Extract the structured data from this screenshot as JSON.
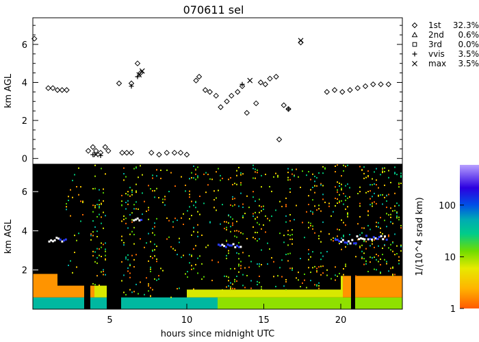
{
  "chart_data": [
    {
      "type": "scatter",
      "panel": "cloud-base-heights",
      "title": "070611 sel",
      "ylabel": "km AGL",
      "xlim": [
        0,
        24
      ],
      "ylim": [
        -0.3,
        7.4
      ],
      "yticks": [
        0,
        2,
        4,
        6
      ],
      "legend_position": "right",
      "legend": [
        {
          "marker": "diamond",
          "label": "1st",
          "value": "32.3%"
        },
        {
          "marker": "triangle",
          "label": "2nd",
          "value": "0.6%"
        },
        {
          "marker": "square",
          "label": "3rd",
          "value": "0.0%"
        },
        {
          "marker": "plus",
          "label": "vvis",
          "value": "3.5%"
        },
        {
          "marker": "cross",
          "label": "max",
          "value": "3.5%"
        }
      ],
      "series": [
        {
          "marker": "diamond",
          "points": [
            [
              0.1,
              6.3
            ],
            [
              1.0,
              3.7
            ],
            [
              1.3,
              3.7
            ],
            [
              1.6,
              3.6
            ],
            [
              1.9,
              3.6
            ],
            [
              2.2,
              3.6
            ],
            [
              3.6,
              0.4
            ],
            [
              3.9,
              0.6
            ],
            [
              4.1,
              0.4
            ],
            [
              4.4,
              0.3
            ],
            [
              4.7,
              0.6
            ],
            [
              4.9,
              0.4
            ],
            [
              5.8,
              0.3
            ],
            [
              6.1,
              0.3
            ],
            [
              6.4,
              0.3
            ],
            [
              5.6,
              3.95
            ],
            [
              6.4,
              3.95
            ],
            [
              6.8,
              5.0
            ],
            [
              7.0,
              4.5
            ],
            [
              7.7,
              0.3
            ],
            [
              8.2,
              0.2
            ],
            [
              8.7,
              0.3
            ],
            [
              9.2,
              0.3
            ],
            [
              9.6,
              0.3
            ],
            [
              10.0,
              0.2
            ],
            [
              10.6,
              4.1
            ],
            [
              10.8,
              4.3
            ],
            [
              11.2,
              3.6
            ],
            [
              11.5,
              3.5
            ],
            [
              11.9,
              3.3
            ],
            [
              12.2,
              2.7
            ],
            [
              12.6,
              3.0
            ],
            [
              12.9,
              3.3
            ],
            [
              13.3,
              3.5
            ],
            [
              13.6,
              3.8
            ],
            [
              13.9,
              2.4
            ],
            [
              14.5,
              2.9
            ],
            [
              14.8,
              4.0
            ],
            [
              15.1,
              3.9
            ],
            [
              15.4,
              4.2
            ],
            [
              15.8,
              4.3
            ],
            [
              16.0,
              1.0
            ],
            [
              16.3,
              2.8
            ],
            [
              16.6,
              2.6
            ],
            [
              17.4,
              6.1
            ],
            [
              19.1,
              3.5
            ],
            [
              19.6,
              3.6
            ],
            [
              20.1,
              3.5
            ],
            [
              20.6,
              3.6
            ],
            [
              21.1,
              3.7
            ],
            [
              21.6,
              3.8
            ],
            [
              22.1,
              3.9
            ],
            [
              22.6,
              3.9
            ],
            [
              23.1,
              3.9
            ]
          ]
        },
        {
          "marker": "plus",
          "points": [
            [
              3.9,
              0.2
            ],
            [
              4.4,
              0.15
            ],
            [
              6.4,
              3.8
            ],
            [
              6.8,
              4.3
            ],
            [
              13.6,
              3.9
            ],
            [
              16.6,
              2.6
            ]
          ]
        },
        {
          "marker": "cross",
          "points": [
            [
              4.1,
              0.2
            ],
            [
              6.9,
              4.4
            ],
            [
              7.1,
              4.6
            ],
            [
              14.1,
              4.1
            ],
            [
              17.4,
              6.2
            ]
          ]
        }
      ]
    },
    {
      "type": "heatmap",
      "panel": "backscatter",
      "xlabel": "hours since midnight UTC",
      "ylabel": "km AGL",
      "xlim": [
        0,
        24
      ],
      "ylim": [
        0,
        7.4
      ],
      "xticks": [
        5,
        10,
        15,
        20
      ],
      "yticks": [
        2,
        4,
        6
      ],
      "colorbar": {
        "label": "1/(10^4 srad km)",
        "scale": "log",
        "range": [
          1,
          600
        ],
        "ticks": [
          1,
          10,
          100
        ]
      }
    }
  ]
}
